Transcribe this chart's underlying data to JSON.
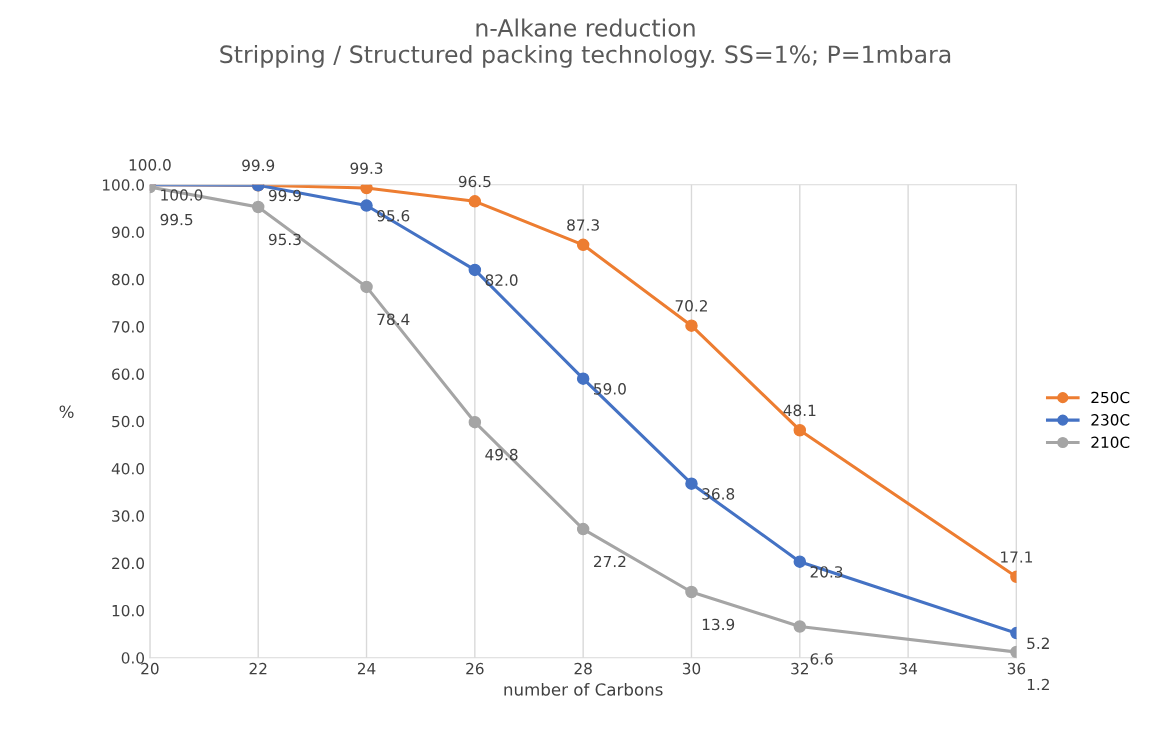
{
  "chart_data": {
    "type": "line",
    "title": "n-Alkane reduction\nStripping / Structured packing technology. SS=1%; P=1mbara",
    "xlabel": "number of Carbons",
    "ylabel": "%",
    "xlim": [
      20,
      36
    ],
    "xticks": [
      20,
      22,
      24,
      26,
      28,
      30,
      32,
      34,
      36
    ],
    "ylim": [
      0,
      100
    ],
    "yticks": [
      {
        "value": 0,
        "label": "0.0"
      },
      {
        "value": 10,
        "label": "10.0"
      },
      {
        "value": 20,
        "label": "20.0"
      },
      {
        "value": 30,
        "label": "30.0"
      },
      {
        "value": 40,
        "label": "40.0"
      },
      {
        "value": 50,
        "label": "50.0"
      },
      {
        "value": 60,
        "label": "60.0"
      },
      {
        "value": 70,
        "label": "70.0"
      },
      {
        "value": 80,
        "label": "80.0"
      },
      {
        "value": 90,
        "label": "90.0"
      },
      {
        "value": 100,
        "label": "100.0"
      }
    ],
    "grid": "x",
    "legend": "right",
    "marker": "circle",
    "line_style": "solid",
    "x": [
      20,
      22,
      24,
      26,
      28,
      30,
      32,
      36
    ],
    "series": [
      {
        "name": "250C",
        "color": "#ed7d31",
        "values": [
          100.0,
          99.9,
          99.3,
          96.5,
          87.3,
          70.2,
          48.1,
          17.1
        ],
        "value_labels": [
          "100.0",
          "99.9",
          "99.3",
          "96.5",
          "87.3",
          "70.2",
          "48.1",
          "17.1"
        ]
      },
      {
        "name": "230C",
        "color": "#4472c4",
        "values": [
          100.0,
          99.9,
          95.6,
          82.0,
          59.0,
          36.8,
          20.3,
          5.2
        ],
        "value_labels": [
          "100.0",
          "99.9",
          "95.6",
          "82.0",
          "59.0",
          "36.8",
          "20.3",
          "5.2"
        ]
      },
      {
        "name": "210C",
        "color": "#a5a5a5",
        "values": [
          99.5,
          95.3,
          78.4,
          49.8,
          27.2,
          13.9,
          6.6,
          1.2
        ],
        "value_labels": [
          "99.5",
          "95.3",
          "78.4",
          "49.8",
          "27.2",
          "13.9",
          "6.6",
          "1.2"
        ]
      }
    ]
  }
}
